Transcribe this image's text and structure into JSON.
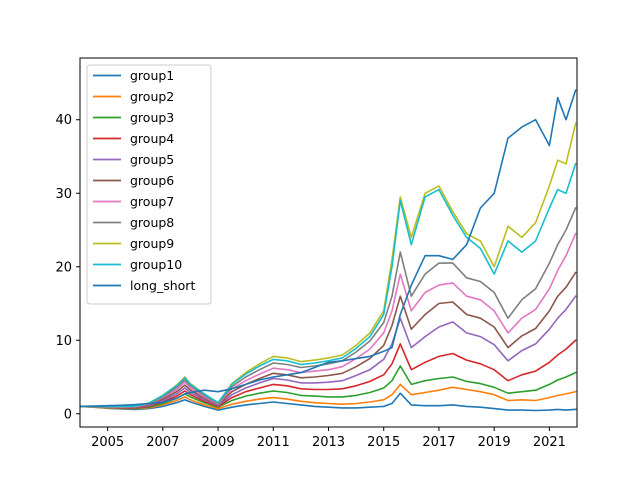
{
  "chart_data": {
    "type": "line",
    "title": "",
    "xlabel": "",
    "ylabel": "",
    "xlim": [
      2004.0,
      2022.0
    ],
    "ylim": [
      -1.8,
      48.4
    ],
    "x_ticks": [
      {
        "value": 2005,
        "label": "2005"
      },
      {
        "value": 2007,
        "label": "2007"
      },
      {
        "value": 2009,
        "label": "2009"
      },
      {
        "value": 2011,
        "label": "2011"
      },
      {
        "value": 2013,
        "label": "2013"
      },
      {
        "value": 2015,
        "label": "2015"
      },
      {
        "value": 2017,
        "label": "2017"
      },
      {
        "value": 2019,
        "label": "2019"
      },
      {
        "value": 2021,
        "label": "2021"
      }
    ],
    "y_ticks": [
      {
        "value": 0,
        "label": "0"
      },
      {
        "value": 10,
        "label": "10"
      },
      {
        "value": 20,
        "label": "20"
      },
      {
        "value": 30,
        "label": "30"
      },
      {
        "value": 40,
        "label": "40"
      }
    ],
    "legend_position": "upper-left",
    "grid": false,
    "x": [
      2004.0,
      2004.5,
      2005.0,
      2005.5,
      2006.0,
      2006.5,
      2007.0,
      2007.5,
      2007.8,
      2008.0,
      2008.5,
      2009.0,
      2009.5,
      2010.0,
      2010.5,
      2011.0,
      2011.5,
      2012.0,
      2012.5,
      2013.0,
      2013.5,
      2014.0,
      2014.5,
      2015.0,
      2015.3,
      2015.6,
      2016.0,
      2016.5,
      2017.0,
      2017.5,
      2018.0,
      2018.5,
      2019.0,
      2019.5,
      2020.0,
      2020.5,
      2021.0,
      2021.3,
      2021.6,
      2021.95
    ],
    "series": [
      {
        "name": "group1",
        "color": "#1f77b4",
        "values": [
          1.0,
          0.9,
          0.75,
          0.65,
          0.6,
          0.7,
          1.0,
          1.5,
          1.9,
          1.6,
          1.0,
          0.5,
          0.9,
          1.2,
          1.4,
          1.6,
          1.4,
          1.2,
          1.0,
          0.9,
          0.8,
          0.8,
          0.9,
          1.0,
          1.4,
          2.8,
          1.2,
          1.1,
          1.1,
          1.2,
          1.0,
          0.9,
          0.7,
          0.5,
          0.5,
          0.45,
          0.5,
          0.6,
          0.5,
          0.6
        ]
      },
      {
        "name": "group2",
        "color": "#ff7f0e",
        "values": [
          1.0,
          0.9,
          0.8,
          0.7,
          0.7,
          0.8,
          1.2,
          1.8,
          2.3,
          1.9,
          1.2,
          0.7,
          1.3,
          1.7,
          2.0,
          2.2,
          2.0,
          1.7,
          1.5,
          1.4,
          1.3,
          1.4,
          1.6,
          1.9,
          2.6,
          4.0,
          2.6,
          2.9,
          3.2,
          3.6,
          3.3,
          3.0,
          2.6,
          1.8,
          1.9,
          1.8,
          2.2,
          2.5,
          2.7,
          3.0
        ]
      },
      {
        "name": "group3",
        "color": "#2ca02c",
        "values": [
          1.0,
          0.95,
          0.85,
          0.75,
          0.75,
          0.9,
          1.4,
          2.1,
          2.7,
          2.3,
          1.5,
          0.9,
          1.8,
          2.4,
          2.8,
          3.1,
          2.9,
          2.5,
          2.4,
          2.3,
          2.3,
          2.5,
          2.9,
          3.5,
          4.5,
          6.5,
          4.0,
          4.5,
          4.8,
          5.0,
          4.4,
          4.1,
          3.6,
          2.8,
          3.0,
          3.2,
          4.0,
          4.6,
          5.0,
          5.6
        ]
      },
      {
        "name": "group4",
        "color": "#d62728",
        "values": [
          1.0,
          0.95,
          0.9,
          0.8,
          0.8,
          1.0,
          1.6,
          2.4,
          3.1,
          2.6,
          1.7,
          1.0,
          2.2,
          3.0,
          3.5,
          4.0,
          3.8,
          3.4,
          3.3,
          3.3,
          3.4,
          3.8,
          4.4,
          5.3,
          6.8,
          9.5,
          6.0,
          7.0,
          7.8,
          8.2,
          7.3,
          6.8,
          6.0,
          4.5,
          5.3,
          5.8,
          7.0,
          8.0,
          8.8,
          10.0
        ]
      },
      {
        "name": "group5",
        "color": "#9467bd",
        "values": [
          1.0,
          0.95,
          0.9,
          0.85,
          0.85,
          1.1,
          1.8,
          2.7,
          3.5,
          2.9,
          1.9,
          1.1,
          2.6,
          3.5,
          4.2,
          4.8,
          4.6,
          4.2,
          4.2,
          4.3,
          4.5,
          5.2,
          6.0,
          7.4,
          9.5,
          13.0,
          9.0,
          10.5,
          11.8,
          12.5,
          11.0,
          10.5,
          9.4,
          7.2,
          8.6,
          9.5,
          11.5,
          13.0,
          14.2,
          16.0
        ]
      },
      {
        "name": "group6",
        "color": "#8c564b",
        "values": [
          1.0,
          1.0,
          0.95,
          0.9,
          0.9,
          1.2,
          2.0,
          3.0,
          3.9,
          3.2,
          2.1,
          1.2,
          3.0,
          4.0,
          4.8,
          5.5,
          5.3,
          4.9,
          5.0,
          5.2,
          5.5,
          6.4,
          7.5,
          9.3,
          12.0,
          16.0,
          11.5,
          13.5,
          15.0,
          15.2,
          13.5,
          13.0,
          11.8,
          9.0,
          10.6,
          11.6,
          14.0,
          16.0,
          17.2,
          19.2
        ]
      },
      {
        "name": "group7",
        "color": "#e377c2",
        "values": [
          1.0,
          1.0,
          0.95,
          0.9,
          0.95,
          1.3,
          2.2,
          3.3,
          4.3,
          3.5,
          2.3,
          1.3,
          3.4,
          4.5,
          5.4,
          6.2,
          6.0,
          5.6,
          5.8,
          6.0,
          6.4,
          7.5,
          8.8,
          11.0,
          14.0,
          19.0,
          14.0,
          16.5,
          17.5,
          17.8,
          16.0,
          15.5,
          14.0,
          11.0,
          13.0,
          14.2,
          17.0,
          19.5,
          21.5,
          24.5
        ]
      },
      {
        "name": "group8",
        "color": "#7f7f7f",
        "values": [
          1.0,
          1.0,
          1.0,
          0.95,
          1.0,
          1.35,
          2.3,
          3.6,
          4.6,
          3.8,
          2.5,
          1.4,
          3.7,
          5.0,
          6.0,
          6.9,
          6.7,
          6.3,
          6.5,
          6.8,
          7.2,
          8.4,
          9.9,
          12.4,
          16.0,
          22.0,
          16.0,
          19.0,
          20.5,
          20.5,
          18.5,
          18.0,
          16.5,
          13.0,
          15.5,
          17.0,
          20.5,
          23.0,
          25.0,
          28.0
        ]
      },
      {
        "name": "group9",
        "color": "#bcbd22",
        "values": [
          1.0,
          1.0,
          1.0,
          1.0,
          1.05,
          1.45,
          2.5,
          3.9,
          5.0,
          4.1,
          2.7,
          1.5,
          4.1,
          5.6,
          6.8,
          7.8,
          7.6,
          7.1,
          7.3,
          7.6,
          8.0,
          9.3,
          11.0,
          14.0,
          21.0,
          29.5,
          24.0,
          30.0,
          31.0,
          27.5,
          24.5,
          23.5,
          20.0,
          25.5,
          24.0,
          26.0,
          31.0,
          34.5,
          34.0,
          39.5
        ]
      },
      {
        "name": "group10",
        "color": "#17becf",
        "values": [
          1.0,
          1.0,
          1.0,
          1.0,
          1.05,
          1.45,
          2.5,
          3.8,
          4.9,
          4.0,
          2.7,
          1.5,
          4.0,
          5.4,
          6.5,
          7.4,
          7.2,
          6.7,
          6.9,
          7.2,
          7.6,
          8.9,
          10.5,
          13.5,
          20.0,
          29.0,
          23.0,
          29.5,
          30.5,
          27.0,
          24.0,
          22.5,
          19.0,
          23.5,
          22.0,
          23.5,
          28.0,
          30.5,
          30.0,
          34.0
        ]
      },
      {
        "name": "long_short",
        "color": "#1f77b4",
        "values": [
          1.0,
          1.05,
          1.1,
          1.15,
          1.25,
          1.4,
          1.55,
          2.1,
          2.7,
          2.9,
          3.2,
          3.0,
          3.4,
          4.0,
          4.6,
          5.0,
          5.3,
          5.6,
          6.3,
          7.0,
          7.2,
          7.5,
          7.8,
          8.5,
          9.0,
          13.5,
          17.5,
          21.5,
          21.5,
          21.0,
          23.0,
          28.0,
          30.0,
          37.5,
          39.0,
          40.0,
          36.5,
          43.0,
          40.0,
          44.0
        ]
      }
    ]
  }
}
